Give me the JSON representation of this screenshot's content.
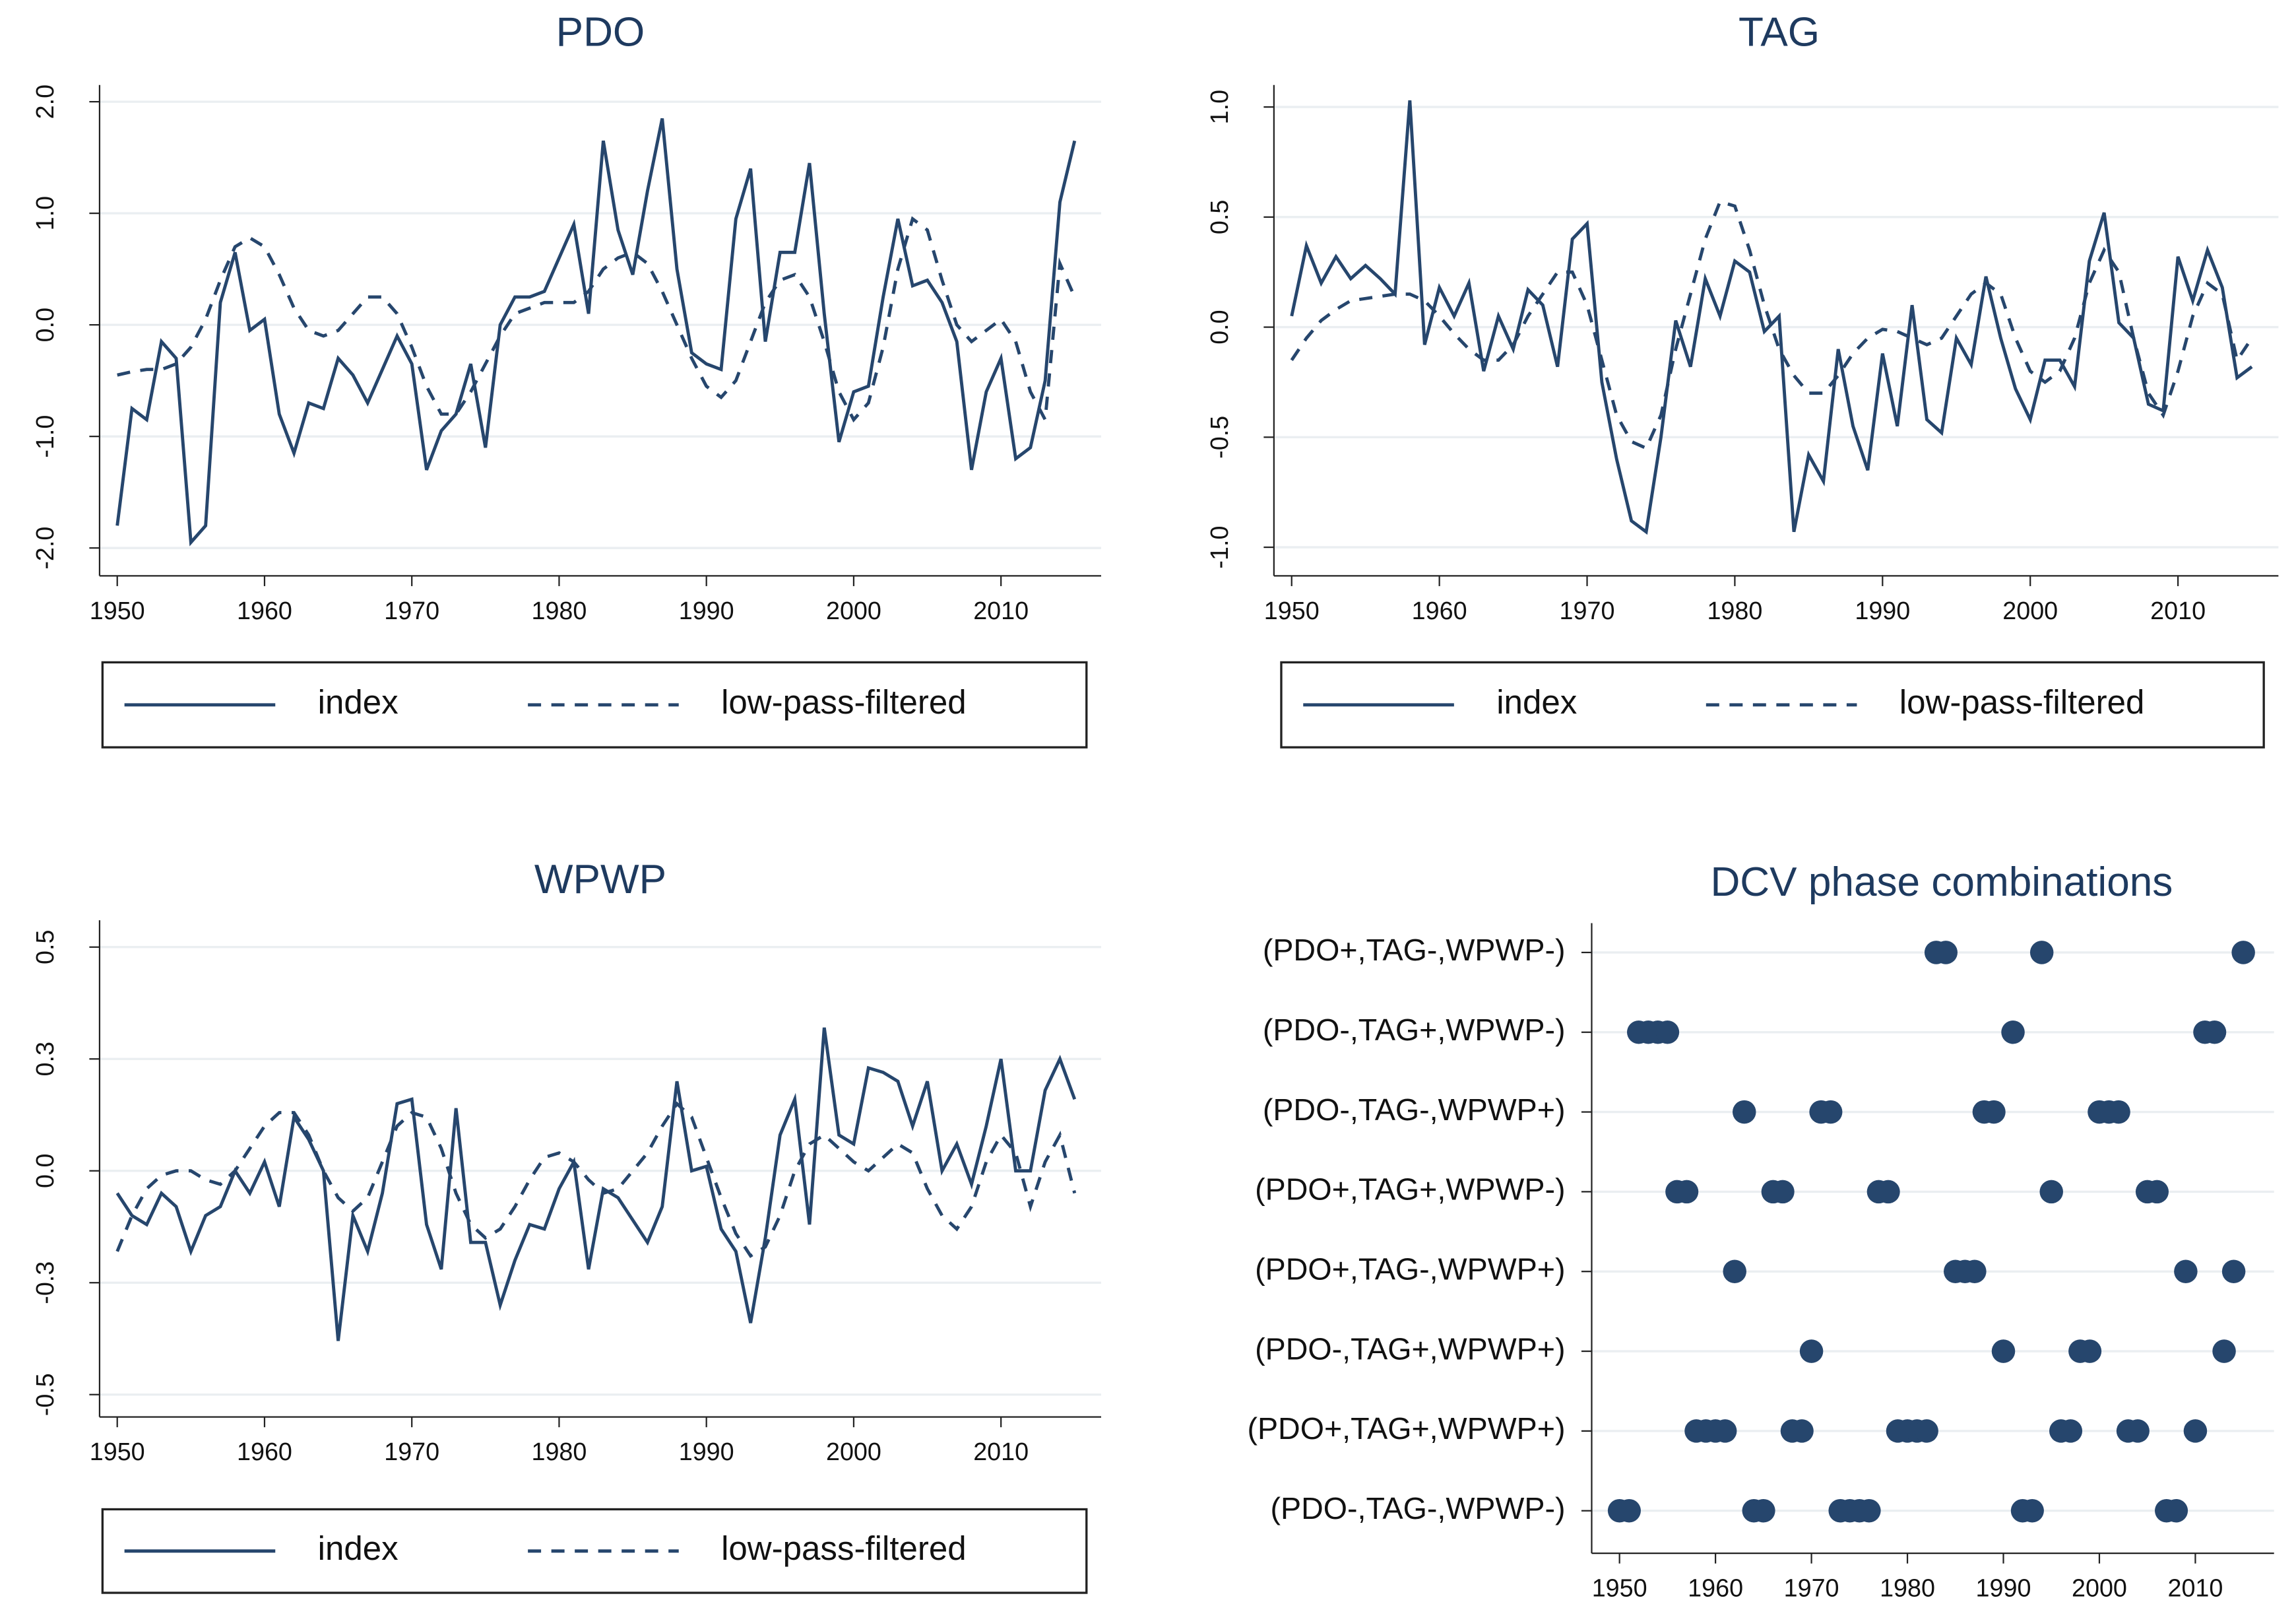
{
  "chart_data": [
    {
      "type": "line",
      "title": "PDO",
      "x": [
        1950,
        1951,
        1952,
        1953,
        1954,
        1955,
        1956,
        1957,
        1958,
        1959,
        1960,
        1961,
        1962,
        1963,
        1964,
        1965,
        1966,
        1967,
        1968,
        1969,
        1970,
        1971,
        1972,
        1973,
        1974,
        1975,
        1976,
        1977,
        1978,
        1979,
        1980,
        1981,
        1982,
        1983,
        1984,
        1985,
        1986,
        1987,
        1988,
        1989,
        1990,
        1991,
        1992,
        1993,
        1994,
        1995,
        1996,
        1997,
        1998,
        1999,
        2000,
        2001,
        2002,
        2003,
        2004,
        2005,
        2006,
        2007,
        2008,
        2009,
        2010,
        2011,
        2012,
        2013,
        2014,
        2015
      ],
      "series": [
        {
          "name": "index",
          "color": "#26466d",
          "style": "solid",
          "values": [
            -1.8,
            -0.75,
            -0.85,
            -0.15,
            -0.3,
            -1.95,
            -1.8,
            0.2,
            0.65,
            -0.05,
            0.05,
            -0.8,
            -1.15,
            -0.7,
            -0.75,
            -0.3,
            -0.45,
            -0.7,
            -0.4,
            -0.1,
            -0.35,
            -1.3,
            -0.95,
            -0.8,
            -0.35,
            -1.1,
            0.0,
            0.25,
            0.25,
            0.3,
            0.6,
            0.9,
            0.1,
            1.65,
            0.85,
            0.45,
            1.2,
            1.85,
            0.5,
            -0.25,
            -0.35,
            -0.4,
            0.95,
            1.4,
            -0.15,
            0.65,
            0.65,
            1.45,
            0.1,
            -1.05,
            -0.6,
            -0.55,
            0.25,
            0.95,
            0.35,
            0.4,
            0.2,
            -0.15,
            -1.3,
            -0.6,
            -0.3,
            -1.2,
            -1.1,
            -0.5,
            1.1,
            1.65
          ]
        },
        {
          "name": "low-pass-filtered",
          "color": "#26466d",
          "style": "dashed",
          "values": [
            -0.45,
            -0.42,
            -0.4,
            -0.4,
            -0.35,
            -0.2,
            0.05,
            0.4,
            0.7,
            0.78,
            0.7,
            0.45,
            0.15,
            -0.05,
            -0.1,
            -0.05,
            0.1,
            0.25,
            0.25,
            0.1,
            -0.2,
            -0.55,
            -0.8,
            -0.8,
            -0.6,
            -0.35,
            -0.1,
            0.1,
            0.15,
            0.2,
            0.2,
            0.2,
            0.3,
            0.5,
            0.6,
            0.65,
            0.55,
            0.3,
            0.0,
            -0.3,
            -0.55,
            -0.65,
            -0.5,
            -0.15,
            0.2,
            0.4,
            0.45,
            0.25,
            -0.15,
            -0.6,
            -0.85,
            -0.7,
            -0.2,
            0.5,
            0.95,
            0.85,
            0.4,
            0.0,
            -0.15,
            -0.05,
            0.05,
            -0.15,
            -0.6,
            -0.85,
            0.55,
            0.25
          ]
        }
      ],
      "xlim": [
        1948.8,
        2016.8
      ],
      "xticks": [
        1950,
        1960,
        1970,
        1980,
        1990,
        2000,
        2010
      ],
      "ylim": [
        -2.25,
        2.15
      ],
      "yticks": [
        {
          "value": -2,
          "label": "-2.0"
        },
        {
          "value": -1,
          "label": "-1.0"
        },
        {
          "value": 0,
          "label": "0.0"
        },
        {
          "value": 1,
          "label": "1.0"
        },
        {
          "value": 2,
          "label": "2.0"
        }
      ],
      "grid": true
    },
    {
      "type": "line",
      "title": "TAG",
      "x": [
        1950,
        1951,
        1952,
        1953,
        1954,
        1955,
        1956,
        1957,
        1958,
        1959,
        1960,
        1961,
        1962,
        1963,
        1964,
        1965,
        1966,
        1967,
        1968,
        1969,
        1970,
        1971,
        1972,
        1973,
        1974,
        1975,
        1976,
        1977,
        1978,
        1979,
        1980,
        1981,
        1982,
        1983,
        1984,
        1985,
        1986,
        1987,
        1988,
        1989,
        1990,
        1991,
        1992,
        1993,
        1994,
        1995,
        1996,
        1997,
        1998,
        1999,
        2000,
        2001,
        2002,
        2003,
        2004,
        2005,
        2006,
        2007,
        2008,
        2009,
        2010,
        2011,
        2012,
        2013,
        2014,
        2015
      ],
      "series": [
        {
          "name": "index",
          "color": "#26466d",
          "style": "solid",
          "values": [
            0.05,
            0.37,
            0.2,
            0.32,
            0.22,
            0.28,
            0.22,
            0.15,
            1.03,
            -0.08,
            0.18,
            0.05,
            0.2,
            -0.2,
            0.05,
            -0.1,
            0.17,
            0.1,
            -0.18,
            0.4,
            0.47,
            -0.25,
            -0.6,
            -0.88,
            -0.93,
            -0.5,
            0.03,
            -0.18,
            0.22,
            0.05,
            0.3,
            0.25,
            -0.02,
            0.05,
            -0.93,
            -0.58,
            -0.7,
            -0.1,
            -0.45,
            -0.65,
            -0.12,
            -0.45,
            0.1,
            -0.42,
            -0.48,
            -0.05,
            -0.17,
            0.23,
            -0.05,
            -0.28,
            -0.42,
            -0.15,
            -0.15,
            -0.27,
            0.3,
            0.52,
            0.02,
            -0.05,
            -0.35,
            -0.38,
            0.32,
            0.12,
            0.35,
            0.18,
            -0.23,
            -0.18
          ]
        },
        {
          "name": "low-pass-filtered",
          "color": "#26466d",
          "style": "dashed",
          "values": [
            -0.15,
            -0.05,
            0.03,
            0.08,
            0.12,
            0.13,
            0.14,
            0.15,
            0.15,
            0.12,
            0.05,
            -0.03,
            -0.1,
            -0.15,
            -0.15,
            -0.08,
            0.05,
            0.15,
            0.25,
            0.25,
            0.1,
            -0.15,
            -0.4,
            -0.52,
            -0.55,
            -0.4,
            -0.1,
            0.15,
            0.4,
            0.57,
            0.55,
            0.35,
            0.1,
            -0.1,
            -0.22,
            -0.3,
            -0.3,
            -0.22,
            -0.12,
            -0.05,
            -0.01,
            -0.02,
            -0.05,
            -0.08,
            -0.05,
            0.05,
            0.15,
            0.2,
            0.15,
            -0.05,
            -0.2,
            -0.25,
            -0.2,
            -0.05,
            0.2,
            0.35,
            0.25,
            -0.05,
            -0.3,
            -0.4,
            -0.2,
            0.05,
            0.2,
            0.15,
            -0.15,
            -0.05
          ]
        }
      ],
      "xlim": [
        1948.8,
        2016.8
      ],
      "xticks": [
        1950,
        1960,
        1970,
        1980,
        1990,
        2000,
        2010
      ],
      "ylim": [
        -1.13,
        1.1
      ],
      "yticks": [
        {
          "value": -1,
          "label": "-1.0"
        },
        -0.5,
        {
          "value": 0,
          "label": "0.0"
        },
        0.5,
        {
          "value": 1,
          "label": "1.0"
        }
      ],
      "grid": true
    },
    {
      "type": "line",
      "title": "WPWP",
      "x": [
        1950,
        1951,
        1952,
        1953,
        1954,
        1955,
        1956,
        1957,
        1958,
        1959,
        1960,
        1961,
        1962,
        1963,
        1964,
        1965,
        1966,
        1967,
        1968,
        1969,
        1970,
        1971,
        1972,
        1973,
        1974,
        1975,
        1976,
        1977,
        1978,
        1979,
        1980,
        1981,
        1982,
        1983,
        1984,
        1985,
        1986,
        1987,
        1988,
        1989,
        1990,
        1991,
        1992,
        1993,
        1994,
        1995,
        1996,
        1997,
        1998,
        1999,
        2000,
        2001,
        2002,
        2003,
        2004,
        2005,
        2006,
        2007,
        2008,
        2009,
        2010,
        2011,
        2012,
        2013,
        2014,
        2015
      ],
      "series": [
        {
          "name": "index",
          "color": "#26466d",
          "style": "solid",
          "values": [
            -0.05,
            -0.1,
            -0.12,
            -0.05,
            -0.08,
            -0.18,
            -0.1,
            -0.08,
            0.0,
            -0.05,
            0.02,
            -0.08,
            0.12,
            0.07,
            0.0,
            -0.38,
            -0.1,
            -0.18,
            -0.05,
            0.15,
            0.16,
            -0.12,
            -0.22,
            0.14,
            -0.16,
            -0.16,
            -0.3,
            -0.2,
            -0.12,
            -0.13,
            -0.04,
            0.02,
            -0.22,
            -0.04,
            -0.06,
            -0.11,
            -0.16,
            -0.08,
            0.2,
            0.0,
            0.01,
            -0.13,
            -0.18,
            -0.34,
            -0.15,
            0.08,
            0.16,
            -0.12,
            0.32,
            0.08,
            0.06,
            0.23,
            0.22,
            0.2,
            0.1,
            0.2,
            0.0,
            0.06,
            -0.03,
            0.1,
            0.25,
            0.0,
            0.0,
            0.18,
            0.25,
            0.16
          ]
        },
        {
          "name": "low-pass-filtered",
          "color": "#26466d",
          "style": "dashed",
          "values": [
            -0.18,
            -0.1,
            -0.04,
            -0.01,
            0.0,
            0.0,
            -0.02,
            -0.03,
            0.0,
            0.05,
            0.1,
            0.13,
            0.13,
            0.08,
            0.0,
            -0.06,
            -0.09,
            -0.06,
            0.02,
            0.1,
            0.13,
            0.12,
            0.05,
            -0.05,
            -0.12,
            -0.15,
            -0.13,
            -0.08,
            -0.02,
            0.03,
            0.04,
            0.02,
            -0.02,
            -0.05,
            -0.04,
            0.0,
            0.04,
            0.1,
            0.15,
            0.12,
            0.03,
            -0.06,
            -0.14,
            -0.19,
            -0.17,
            -0.1,
            0.0,
            0.06,
            0.08,
            0.05,
            0.02,
            0.0,
            0.03,
            0.06,
            0.04,
            -0.04,
            -0.1,
            -0.13,
            -0.08,
            0.02,
            0.08,
            0.04,
            -0.08,
            0.02,
            0.08,
            -0.05
          ]
        }
      ],
      "xlim": [
        1948.8,
        2016.8
      ],
      "xticks": [
        1950,
        1960,
        1970,
        1980,
        1990,
        2000,
        2010
      ],
      "ylim": [
        -0.55,
        0.56
      ],
      "yticks": [
        -0.5,
        {
          "value": -0.25,
          "label": "-0.3"
        },
        {
          "value": 0,
          "label": "0.0"
        },
        {
          "value": 0.25,
          "label": "0.3"
        },
        0.5
      ],
      "grid": true
    },
    {
      "type": "dots",
      "title": "DCV phase combinations",
      "color": "#26466d",
      "rows": [
        {
          "label": "(PDO+,TAG-,WPWP-)",
          "years": [
            1983,
            1984,
            1994,
            2015
          ]
        },
        {
          "label": "(PDO-,TAG+,WPWP-)",
          "years": [
            1952,
            1953,
            1954,
            1955,
            1991,
            2011,
            2012
          ]
        },
        {
          "label": "(PDO-,TAG-,WPWP+)",
          "years": [
            1963,
            1971,
            1972,
            1988,
            1989,
            2000,
            2001,
            2002
          ]
        },
        {
          "label": "(PDO+,TAG+,WPWP-)",
          "years": [
            1956,
            1957,
            1966,
            1967,
            1977,
            1978,
            1995,
            2005,
            2006
          ]
        },
        {
          "label": "(PDO+,TAG-,WPWP+)",
          "years": [
            1962,
            1985,
            1986,
            1987,
            2009,
            2014
          ]
        },
        {
          "label": "(PDO-,TAG+,WPWP+)",
          "years": [
            1970,
            1990,
            1998,
            1999,
            2013
          ]
        },
        {
          "label": "(PDO+,TAG+,WPWP+)",
          "years": [
            1958,
            1959,
            1960,
            1961,
            1968,
            1969,
            1979,
            1980,
            1981,
            1982,
            1996,
            1997,
            2003,
            2004,
            2010
          ]
        },
        {
          "label": "(PDO-,TAG-,WPWP-)",
          "years": [
            1950,
            1951,
            1964,
            1965,
            1973,
            1974,
            1975,
            1976,
            1992,
            1993,
            2007,
            2008
          ]
        }
      ],
      "xlim": [
        1947.1,
        2018.2
      ],
      "xticks": [
        1950,
        1960,
        1970,
        1980,
        1990,
        2000,
        2010
      ],
      "grid": true
    }
  ]
}
